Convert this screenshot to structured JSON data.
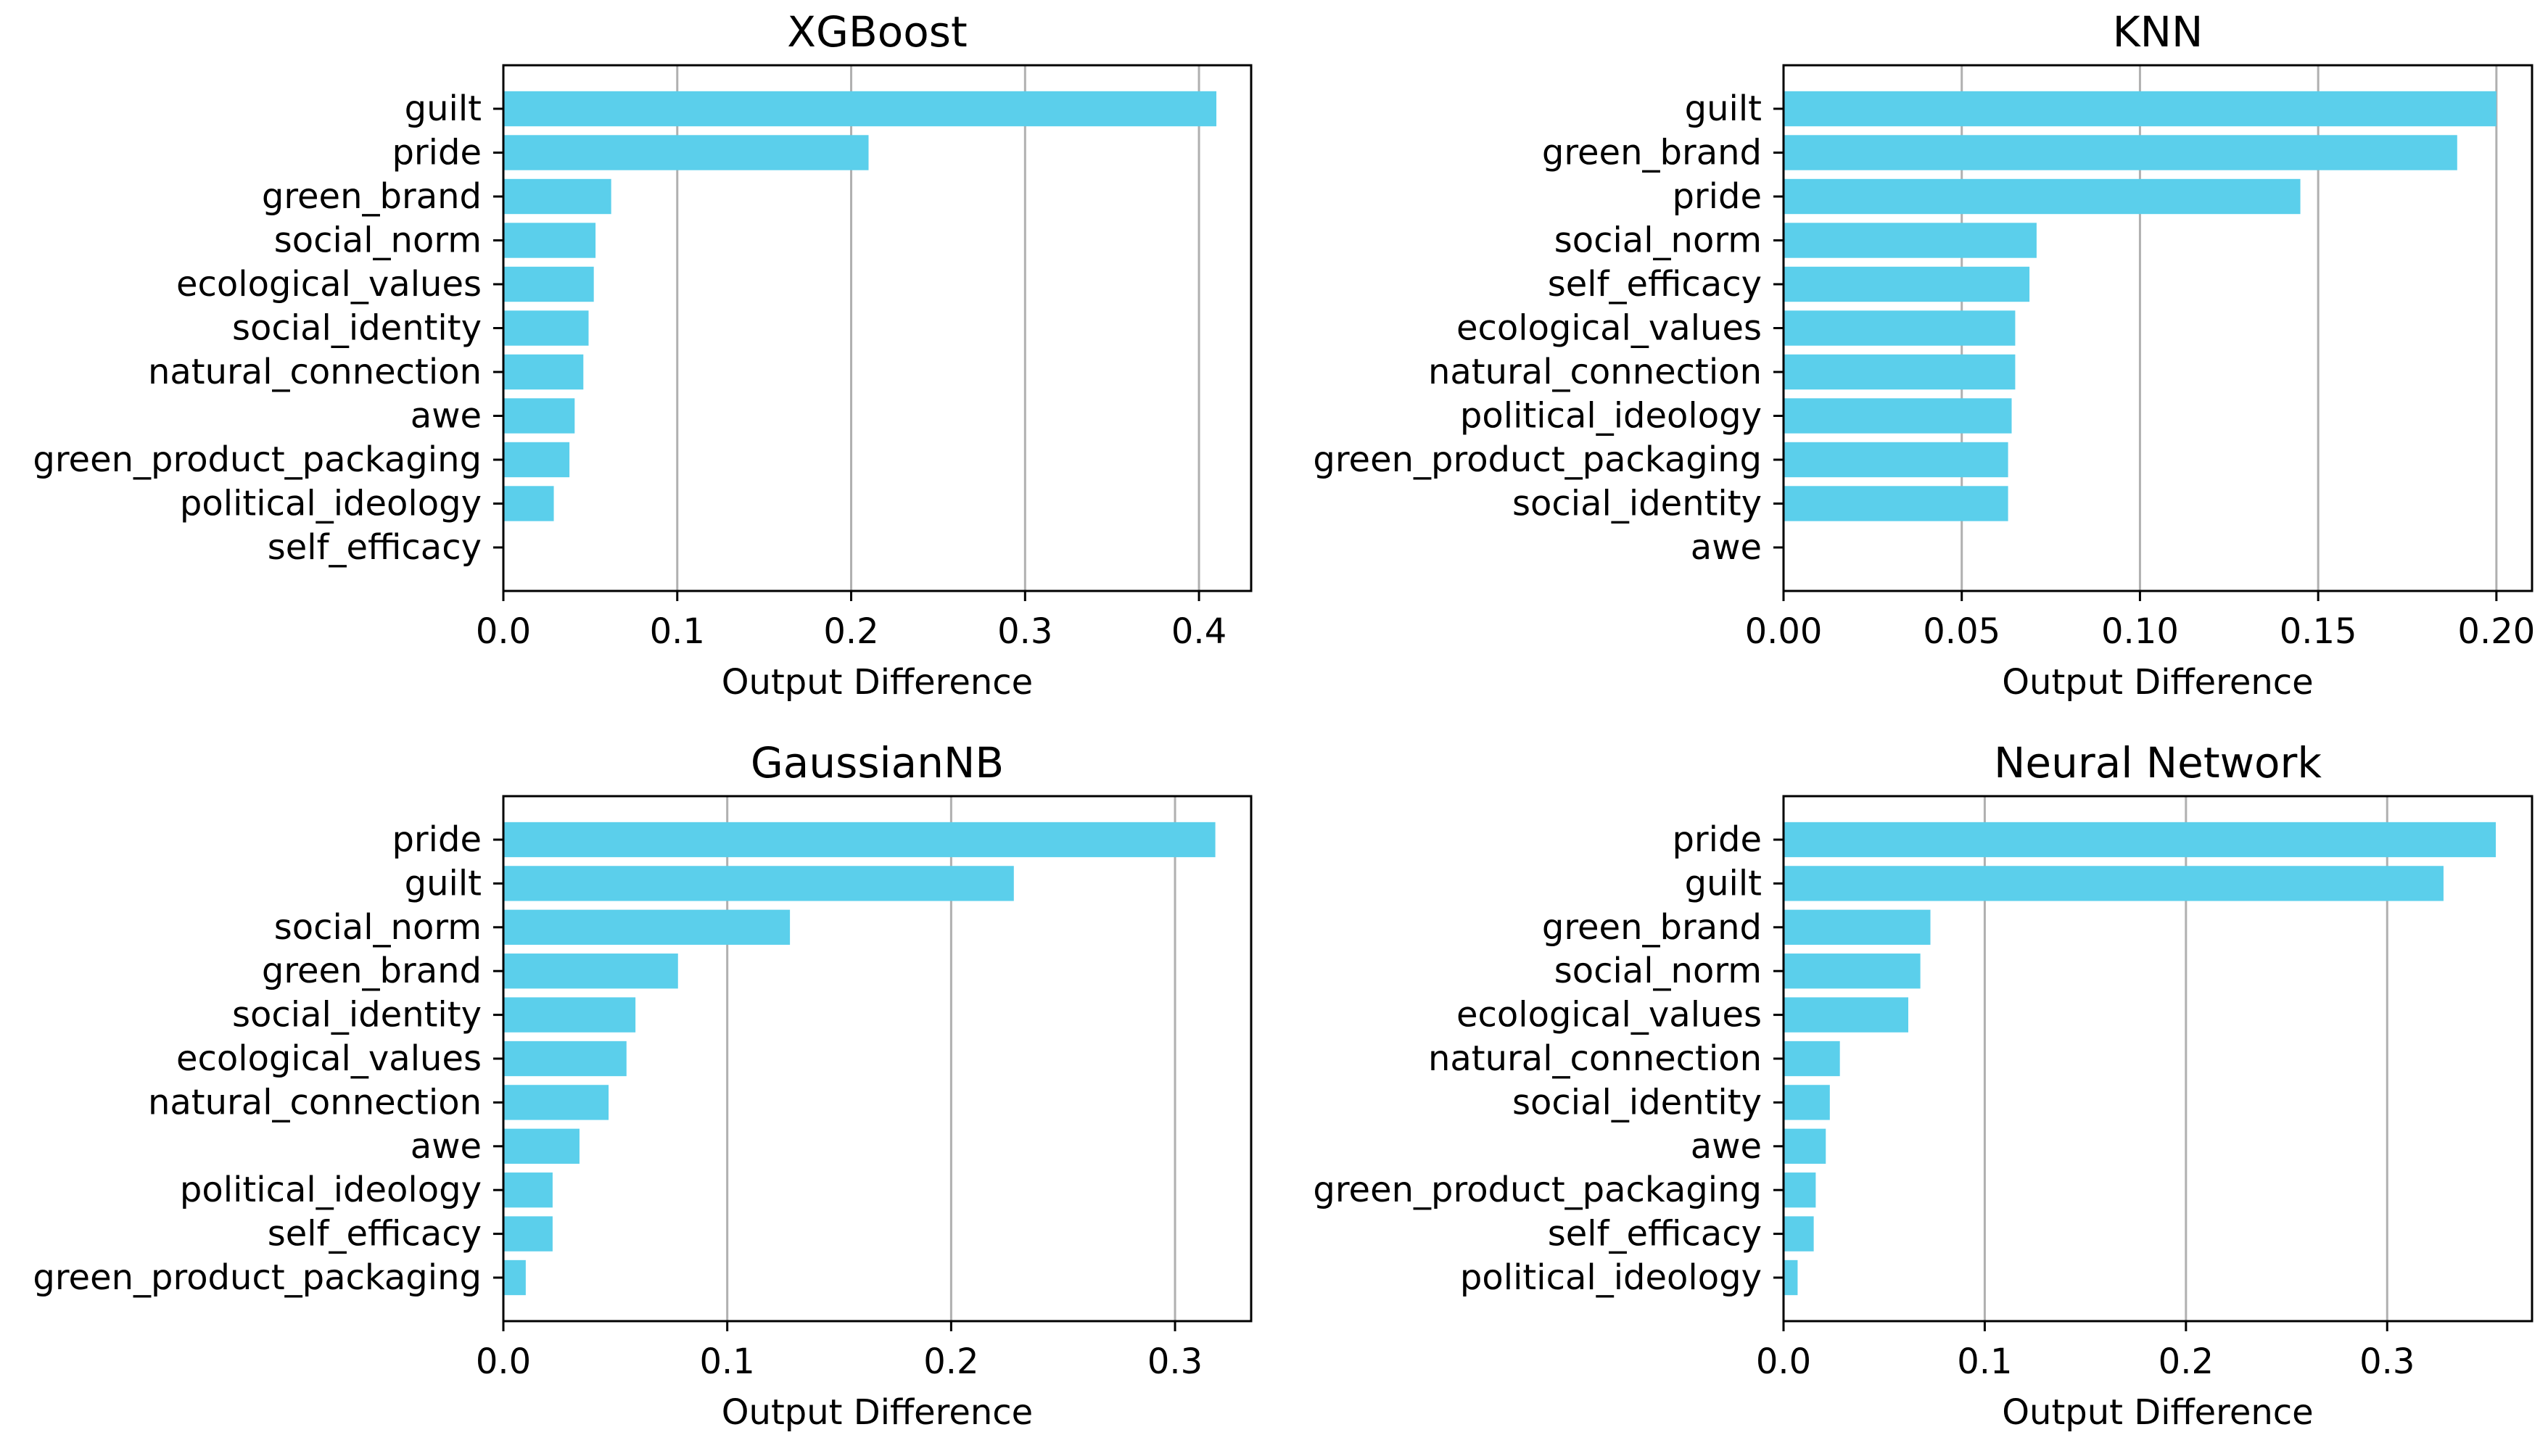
{
  "chart_data": [
    {
      "type": "bar",
      "orientation": "horizontal",
      "title": "XGBoost",
      "xlabel": "Output Difference",
      "ylabel": "",
      "categories": [
        "guilt",
        "pride",
        "green_brand",
        "social_norm",
        "ecological_values",
        "social_identity",
        "natural_connection",
        "awe",
        "green_product_packaging",
        "political_ideology",
        "self_efficacy"
      ],
      "values": [
        0.41,
        0.21,
        0.062,
        0.053,
        0.052,
        0.049,
        0.046,
        0.041,
        0.038,
        0.029,
        0.0
      ],
      "xlim": [
        0,
        0.43
      ],
      "xticks": [
        0.0,
        0.1,
        0.2,
        0.3,
        0.4
      ],
      "xtick_labels": [
        "0.0",
        "0.1",
        "0.2",
        "0.3",
        "0.4"
      ],
      "grid": "x",
      "color": "#5bcfeb"
    },
    {
      "type": "bar",
      "orientation": "horizontal",
      "title": "KNN",
      "xlabel": "Output Difference",
      "ylabel": "",
      "categories": [
        "guilt",
        "green_brand",
        "pride",
        "social_norm",
        "self_efficacy",
        "ecological_values",
        "natural_connection",
        "political_ideology",
        "green_product_packaging",
        "social_identity",
        "awe"
      ],
      "values": [
        0.2,
        0.189,
        0.145,
        0.071,
        0.069,
        0.065,
        0.065,
        0.064,
        0.063,
        0.063,
        0.0
      ],
      "xlim": [
        0,
        0.21
      ],
      "xticks": [
        0.0,
        0.05,
        0.1,
        0.15,
        0.2
      ],
      "xtick_labels": [
        "0.00",
        "0.05",
        "0.10",
        "0.15",
        "0.20"
      ],
      "grid": "x",
      "color": "#5bcfeb"
    },
    {
      "type": "bar",
      "orientation": "horizontal",
      "title": "GaussianNB",
      "xlabel": "Output Difference",
      "ylabel": "",
      "categories": [
        "pride",
        "guilt",
        "social_norm",
        "green_brand",
        "social_identity",
        "ecological_values",
        "natural_connection",
        "awe",
        "political_ideology",
        "self_efficacy",
        "green_product_packaging"
      ],
      "values": [
        0.318,
        0.228,
        0.128,
        0.078,
        0.059,
        0.055,
        0.047,
        0.034,
        0.022,
        0.022,
        0.01
      ],
      "xlim": [
        0,
        0.334
      ],
      "xticks": [
        0.0,
        0.1,
        0.2,
        0.3
      ],
      "xtick_labels": [
        "0.0",
        "0.1",
        "0.2",
        "0.3"
      ],
      "grid": "x",
      "color": "#5bcfeb"
    },
    {
      "type": "bar",
      "orientation": "horizontal",
      "title": "Neural Network",
      "xlabel": "Output Difference",
      "ylabel": "",
      "categories": [
        "pride",
        "guilt",
        "green_brand",
        "social_norm",
        "ecological_values",
        "natural_connection",
        "social_identity",
        "awe",
        "green_product_packaging",
        "self_efficacy",
        "political_ideology"
      ],
      "values": [
        0.354,
        0.328,
        0.073,
        0.068,
        0.062,
        0.028,
        0.023,
        0.021,
        0.016,
        0.015,
        0.007
      ],
      "xlim": [
        0,
        0.372
      ],
      "xticks": [
        0.0,
        0.1,
        0.2,
        0.3
      ],
      "xtick_labels": [
        "0.0",
        "0.1",
        "0.2",
        "0.3"
      ],
      "grid": "x",
      "color": "#5bcfeb"
    }
  ]
}
